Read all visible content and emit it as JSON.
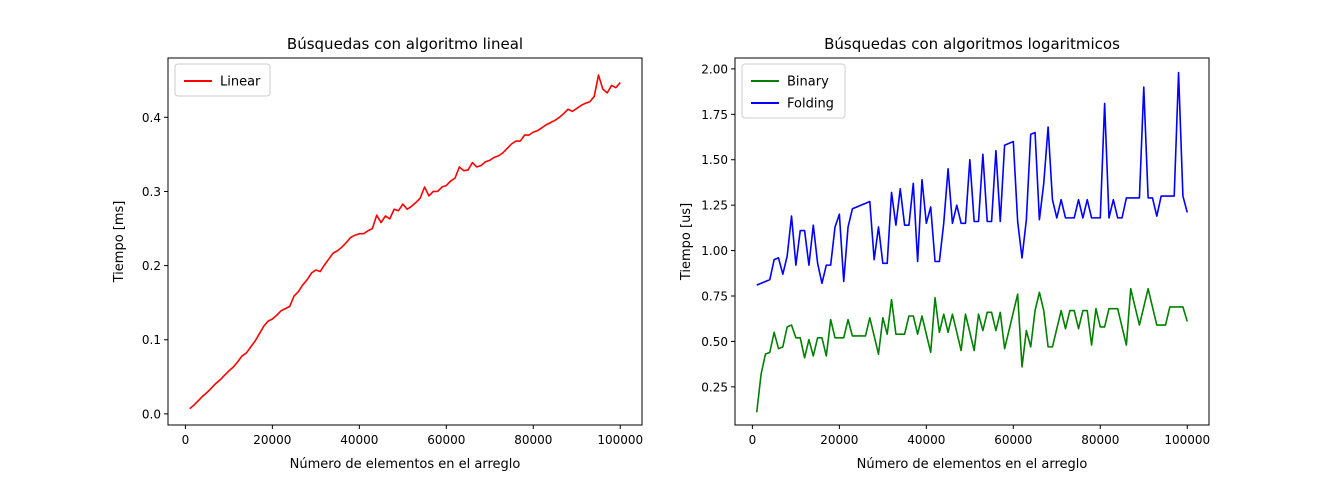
{
  "chart_data": [
    {
      "type": "line",
      "title": "Búsquedas con algoritmo lineal",
      "xlabel": "Número de elementos en el arreglo",
      "ylabel": "Tiempo [ms]",
      "xlim": [
        -4000,
        105000
      ],
      "ylim": [
        -0.015,
        0.48
      ],
      "xticks": [
        0,
        20000,
        40000,
        60000,
        80000,
        100000
      ],
      "xtick_labels": [
        "0",
        "20000",
        "40000",
        "60000",
        "80000",
        "100000"
      ],
      "yticks": [
        0.0,
        0.1,
        0.2,
        0.3,
        0.4
      ],
      "ytick_labels": [
        "0.0",
        "0.1",
        "0.2",
        "0.3",
        "0.4"
      ],
      "grid": false,
      "legend": "top-left",
      "x": [
        1000,
        2000,
        3000,
        4000,
        5000,
        6000,
        7000,
        8000,
        9000,
        10000,
        11000,
        12000,
        13000,
        14000,
        15000,
        16000,
        17000,
        18000,
        19000,
        20000,
        21000,
        22000,
        23000,
        24000,
        25000,
        26000,
        27000,
        28000,
        29000,
        30000,
        31000,
        32000,
        33000,
        34000,
        35000,
        36000,
        37000,
        38000,
        39000,
        40000,
        41000,
        42000,
        43000,
        44000,
        45000,
        46000,
        47000,
        48000,
        49000,
        50000,
        51000,
        52000,
        53000,
        54000,
        55000,
        56000,
        57000,
        58000,
        59000,
        60000,
        61000,
        62000,
        63000,
        64000,
        65000,
        66000,
        67000,
        68000,
        69000,
        70000,
        71000,
        72000,
        73000,
        74000,
        75000,
        76000,
        77000,
        78000,
        79000,
        80000,
        81000,
        82000,
        83000,
        84000,
        85000,
        86000,
        87000,
        88000,
        89000,
        90000,
        91000,
        92000,
        93000,
        94000,
        95000,
        96000,
        97000,
        98000,
        99000,
        100000
      ],
      "series": [
        {
          "name": "Linear",
          "color": "#ff0000",
          "values": [
            0.007,
            0.012,
            0.018,
            0.024,
            0.029,
            0.035,
            0.041,
            0.046,
            0.052,
            0.058,
            0.063,
            0.07,
            0.078,
            0.082,
            0.09,
            0.098,
            0.108,
            0.118,
            0.125,
            0.128,
            0.133,
            0.139,
            0.142,
            0.145,
            0.159,
            0.165,
            0.174,
            0.181,
            0.19,
            0.194,
            0.192,
            0.201,
            0.209,
            0.217,
            0.22,
            0.225,
            0.231,
            0.238,
            0.241,
            0.243,
            0.243,
            0.247,
            0.25,
            0.268,
            0.258,
            0.267,
            0.263,
            0.276,
            0.274,
            0.283,
            0.276,
            0.28,
            0.285,
            0.291,
            0.306,
            0.294,
            0.3,
            0.3,
            0.306,
            0.308,
            0.314,
            0.318,
            0.333,
            0.328,
            0.329,
            0.339,
            0.333,
            0.335,
            0.34,
            0.342,
            0.346,
            0.348,
            0.352,
            0.358,
            0.364,
            0.368,
            0.368,
            0.376,
            0.376,
            0.38,
            0.382,
            0.386,
            0.39,
            0.393,
            0.396,
            0.4,
            0.405,
            0.411,
            0.408,
            0.412,
            0.416,
            0.419,
            0.421,
            0.428,
            0.457,
            0.438,
            0.433,
            0.443,
            0.44,
            0.447
          ]
        }
      ]
    },
    {
      "type": "line",
      "title": "Búsquedas con algoritmos logaritmicos",
      "xlabel": "Número de elementos en el arreglo",
      "ylabel": "Tiempo [us]",
      "xlim": [
        -4000,
        105000
      ],
      "ylim": [
        0.04,
        2.06
      ],
      "xticks": [
        0,
        20000,
        40000,
        60000,
        80000,
        100000
      ],
      "xtick_labels": [
        "0",
        "20000",
        "40000",
        "60000",
        "80000",
        "100000"
      ],
      "yticks": [
        0.25,
        0.5,
        0.75,
        1.0,
        1.25,
        1.5,
        1.75,
        2.0
      ],
      "ytick_labels": [
        "0.25",
        "0.50",
        "0.75",
        "1.00",
        "1.25",
        "1.50",
        "1.75",
        "2.00"
      ],
      "grid": false,
      "legend": "top-left",
      "x": [
        1000,
        2000,
        3000,
        4000,
        5000,
        6000,
        7000,
        8000,
        9000,
        10000,
        11000,
        12000,
        13000,
        14000,
        15000,
        16000,
        17000,
        18000,
        19000,
        20000,
        21000,
        22000,
        23000,
        24000,
        25000,
        26000,
        27000,
        28000,
        29000,
        30000,
        31000,
        32000,
        33000,
        34000,
        35000,
        36000,
        37000,
        38000,
        39000,
        40000,
        41000,
        42000,
        43000,
        44000,
        45000,
        46000,
        47000,
        48000,
        49000,
        50000,
        51000,
        52000,
        53000,
        54000,
        55000,
        56000,
        57000,
        58000,
        59000,
        60000,
        61000,
        62000,
        63000,
        64000,
        65000,
        66000,
        67000,
        68000,
        69000,
        70000,
        71000,
        72000,
        73000,
        74000,
        75000,
        76000,
        77000,
        78000,
        79000,
        80000,
        81000,
        82000,
        83000,
        84000,
        85000,
        86000,
        87000,
        88000,
        89000,
        90000,
        91000,
        92000,
        93000,
        94000,
        95000,
        96000,
        97000,
        98000,
        99000,
        100000
      ],
      "series": [
        {
          "name": "Binary",
          "color": "#008000",
          "values": [
            0.11,
            0.32,
            0.43,
            0.44,
            0.55,
            0.46,
            0.47,
            0.58,
            0.59,
            0.52,
            0.52,
            0.41,
            0.51,
            0.42,
            0.52,
            0.52,
            0.42,
            0.62,
            0.52,
            0.52,
            0.52,
            0.62,
            0.53,
            0.53,
            0.53,
            0.53,
            0.63,
            0.53,
            0.43,
            0.63,
            0.54,
            0.73,
            0.54,
            0.54,
            0.54,
            0.64,
            0.64,
            0.54,
            0.64,
            0.54,
            0.44,
            0.74,
            0.55,
            0.65,
            0.55,
            0.65,
            0.55,
            0.45,
            0.65,
            0.55,
            0.45,
            0.65,
            0.56,
            0.66,
            0.66,
            0.56,
            0.66,
            0.46,
            0.56,
            0.66,
            0.76,
            0.36,
            0.56,
            0.47,
            0.67,
            0.77,
            0.67,
            0.47,
            0.47,
            0.57,
            0.67,
            0.57,
            0.67,
            0.67,
            0.57,
            0.67,
            0.67,
            0.48,
            0.68,
            0.58,
            0.58,
            0.68,
            0.68,
            0.68,
            0.58,
            0.48,
            0.79,
            0.69,
            0.59,
            0.69,
            0.79,
            0.69,
            0.59,
            0.59,
            0.59,
            0.69,
            0.69,
            0.69,
            0.69,
            0.61
          ]
        },
        {
          "name": "Folding",
          "color": "#0000ff",
          "values": [
            0.81,
            0.82,
            0.83,
            0.84,
            0.95,
            0.96,
            0.87,
            0.97,
            1.19,
            0.92,
            1.11,
            1.11,
            0.92,
            1.14,
            0.93,
            0.82,
            0.92,
            0.92,
            1.13,
            1.2,
            0.83,
            1.13,
            1.23,
            1.24,
            1.25,
            1.26,
            1.27,
            0.95,
            1.13,
            0.93,
            0.93,
            1.32,
            1.14,
            1.34,
            1.14,
            1.14,
            1.37,
            0.94,
            1.39,
            1.15,
            1.24,
            0.94,
            0.94,
            1.15,
            1.45,
            1.15,
            1.25,
            1.15,
            1.15,
            1.5,
            1.16,
            1.16,
            1.53,
            1.16,
            1.16,
            1.55,
            1.16,
            1.58,
            1.59,
            1.6,
            1.16,
            0.96,
            1.17,
            1.64,
            1.65,
            1.17,
            1.37,
            1.68,
            1.28,
            1.18,
            1.28,
            1.18,
            1.18,
            1.18,
            1.28,
            1.18,
            1.28,
            1.18,
            1.18,
            1.18,
            1.81,
            1.18,
            1.28,
            1.18,
            1.18,
            1.29,
            1.29,
            1.29,
            1.29,
            1.9,
            1.29,
            1.29,
            1.19,
            1.3,
            1.3,
            1.3,
            1.3,
            1.98,
            1.3,
            1.21
          ]
        }
      ]
    }
  ]
}
